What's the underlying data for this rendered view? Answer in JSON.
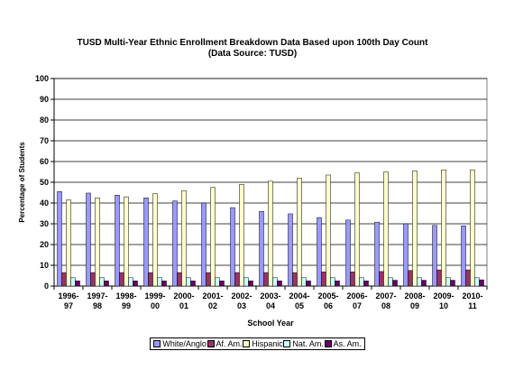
{
  "chart_data": {
    "type": "bar",
    "title": "TUSD Multi-Year Ethnic Enrollment Breakdown Data Based upon 100th Day Count",
    "subtitle": "(Data Source: TUSD)",
    "xlabel": "School Year",
    "ylabel": "Percentage of Students",
    "ylim": [
      0,
      100
    ],
    "yticks": [
      "0",
      "10",
      "20",
      "30",
      "40",
      "50",
      "60",
      "70",
      "80",
      "90",
      "100"
    ],
    "grid": true,
    "legend_position": "bottom",
    "categories": [
      [
        "1996-",
        "97"
      ],
      [
        "1997-",
        "98"
      ],
      [
        "1998-",
        "99"
      ],
      [
        "1999-",
        "00"
      ],
      [
        "2000-",
        "01"
      ],
      [
        "2001-",
        "02"
      ],
      [
        "2002-",
        "03"
      ],
      [
        "2003-",
        "04"
      ],
      [
        "2004-",
        "05"
      ],
      [
        "2005-",
        "06"
      ],
      [
        "2006-",
        "07"
      ],
      [
        "2007-",
        "08"
      ],
      [
        "2008-",
        "09"
      ],
      [
        "2009-",
        "10"
      ],
      [
        "2010-",
        "11"
      ]
    ],
    "series": [
      {
        "name": "White/Anglo",
        "color": "#9999ff",
        "values": [
          45.5,
          44.8,
          43.8,
          42.5,
          41,
          40,
          37.8,
          36,
          34.8,
          33,
          31.8,
          30.8,
          30,
          29.2,
          29
        ]
      },
      {
        "name": "Af. Am.",
        "color": "#993366",
        "values": [
          6.5,
          6.5,
          6.5,
          6.5,
          6.5,
          6.5,
          6.5,
          6.5,
          6.5,
          6.8,
          6.8,
          7,
          7.5,
          7.8,
          7.8
        ]
      },
      {
        "name": "Hispanic",
        "color": "#ffffcc",
        "values": [
          41.5,
          42.5,
          43,
          44.5,
          46,
          47.5,
          49,
          50.5,
          52,
          53.5,
          54.5,
          55,
          55.5,
          56,
          56
        ]
      },
      {
        "name": "Nat. Am.",
        "color": "#ccffff",
        "values": [
          4,
          4,
          4,
          4,
          4,
          4,
          4,
          4,
          4,
          4,
          4,
          4,
          4,
          4,
          4
        ]
      },
      {
        "name": "As. Am.",
        "color": "#660066",
        "values": [
          2.5,
          2.5,
          2.5,
          2.5,
          2.5,
          2.5,
          2.5,
          2.5,
          2.5,
          2.5,
          2.5,
          2.8,
          2.8,
          2.8,
          3
        ]
      }
    ]
  }
}
